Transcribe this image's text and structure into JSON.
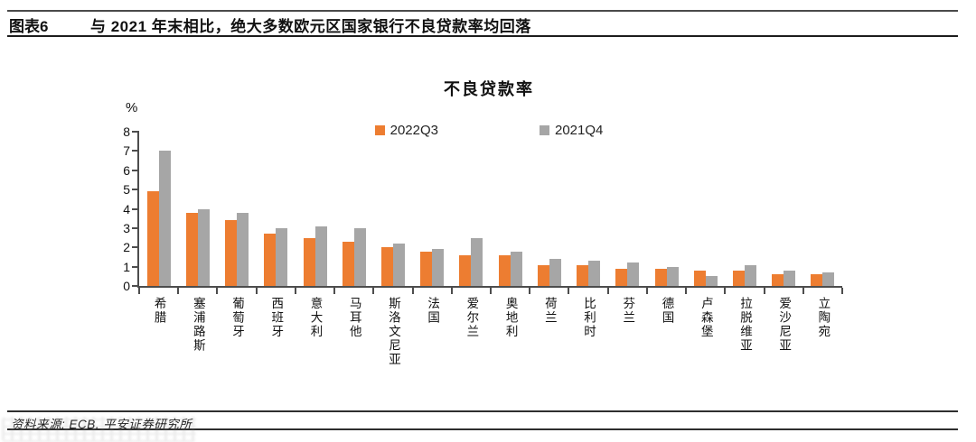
{
  "header": {
    "figure_label": "图表6",
    "title": "与 2021 年末相比，绝大多数欧元区国家银行不良贷款率均回落"
  },
  "footer": {
    "source": "资料来源: ECB, 平安证券研究所"
  },
  "chart_data": {
    "type": "bar",
    "title": "不良贷款率",
    "unit_label": "%",
    "xlabel": "",
    "ylabel": "%",
    "ylim": [
      0,
      8
    ],
    "yticks": [
      0,
      1,
      2,
      3,
      4,
      5,
      6,
      7,
      8
    ],
    "grid": false,
    "legend_position": "top-center",
    "categories": [
      "希腊",
      "塞浦路斯",
      "葡萄牙",
      "西班牙",
      "意大利",
      "马耳他",
      "斯洛文尼亚",
      "法国",
      "爱尔兰",
      "奥地利",
      "荷兰",
      "比利时",
      "芬兰",
      "德国",
      "卢森堡",
      "拉脱维亚",
      "爱沙尼亚",
      "立陶宛"
    ],
    "series": [
      {
        "name": "2022Q3",
        "color": "#ED7D31",
        "values": [
          4.9,
          3.8,
          3.4,
          2.7,
          2.5,
          2.3,
          2.0,
          1.8,
          1.6,
          1.6,
          1.1,
          1.1,
          0.9,
          0.9,
          0.8,
          0.8,
          0.6,
          0.6
        ]
      },
      {
        "name": "2021Q4",
        "color": "#A6A6A6",
        "values": [
          7.0,
          4.0,
          3.8,
          3.0,
          3.1,
          3.0,
          2.2,
          1.9,
          2.5,
          1.8,
          1.4,
          1.3,
          1.2,
          1.0,
          0.5,
          1.1,
          0.8,
          0.7
        ]
      }
    ]
  }
}
